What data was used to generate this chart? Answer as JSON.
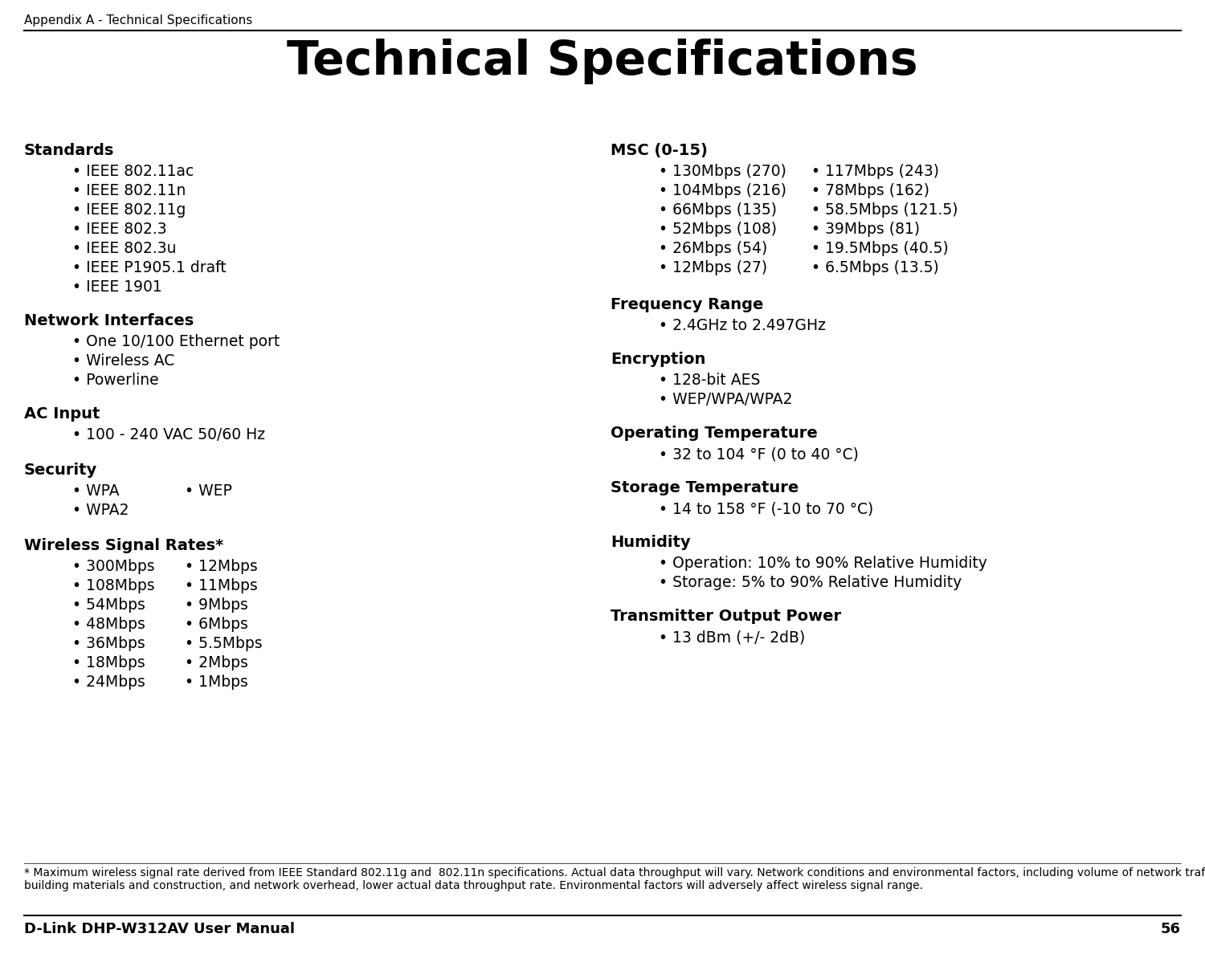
{
  "bg_color": "#ffffff",
  "text_color": "#000000",
  "header_top": "Appendix A - Technical Specifications",
  "page_number": "56",
  "footer_left": "D-Link DHP-W312AV User Manual",
  "main_title": "Technical Specifications",
  "footnote": "* Maximum wireless signal rate derived from IEEE Standard 802.11g and  802.11n specifications. Actual data throughput will vary. Network conditions and environmental factors, including volume of network traffic,\nbuilding materials and construction, and network overhead, lower actual data throughput rate. Environmental factors will adversely affect wireless signal range.",
  "heading_fontsize": 14,
  "body_fontsize": 13.5,
  "title_fontsize": 42,
  "header_fontsize": 11,
  "footer_fontsize": 13,
  "footnote_fontsize": 10,
  "std_items": [
    "• IEEE 802.11ac",
    "• IEEE 802.11n",
    "• IEEE 802.11g",
    "• IEEE 802.3",
    "• IEEE 802.3u",
    "• IEEE P1905.1 draft",
    "• IEEE 1901"
  ],
  "ni_items": [
    "• One 10/100 Ethernet port",
    "• Wireless AC",
    "• Powerline"
  ],
  "security_col1": [
    "• WPA",
    "• WPA2"
  ],
  "security_col2": [
    "• WEP"
  ],
  "wsr_col1": [
    "• 300Mbps",
    "• 108Mbps",
    "• 54Mbps",
    "• 48Mbps",
    "• 36Mbps",
    "• 18Mbps",
    "• 24Mbps"
  ],
  "wsr_col2": [
    "• 12Mbps",
    "• 11Mbps",
    "• 9Mbps",
    "• 6Mbps",
    "• 5.5Mbps",
    "• 2Mbps",
    "• 1Mbps"
  ],
  "msc_col1": [
    "• 130Mbps (270)",
    "• 104Mbps (216)",
    "• 66Mbps (135)",
    "• 52Mbps (108)",
    "• 26Mbps (54)",
    "• 12Mbps (27)"
  ],
  "msc_col2": [
    "• 117Mbps (243)",
    "• 78Mbps (162)",
    "• 58.5Mbps (121.5)",
    "• 39Mbps (81)",
    "• 19.5Mbps (40.5)",
    "• 6.5Mbps (13.5)"
  ],
  "freq_items": [
    "• 2.4GHz to 2.497GHz"
  ],
  "enc_items": [
    "• 128-bit AES",
    "• WEP/WPA/WPA2"
  ],
  "op_temp_items": [
    "• 32 to 104 °F (0 to 40 °C)"
  ],
  "st_temp_items": [
    "• 14 to 158 °F (-10 to 70 °C)"
  ],
  "hum_items": [
    "• Operation: 10% to 90% Relative Humidity",
    "• Storage: 5% to 90% Relative Humidity"
  ],
  "tx_items": [
    "• 13 dBm (+/- 2dB)"
  ]
}
